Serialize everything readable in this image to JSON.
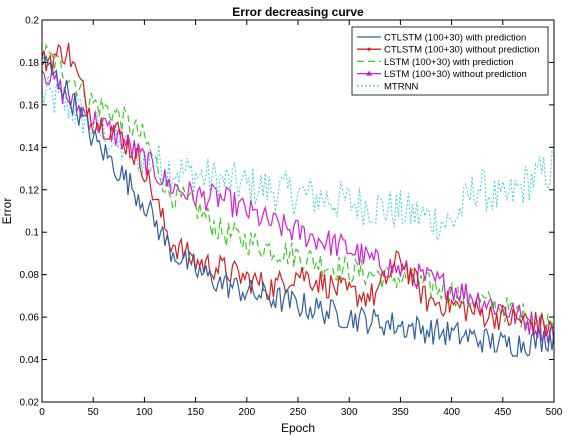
{
  "chart_data": {
    "type": "line",
    "title": "Error decreasing curve",
    "xlabel": "Epoch",
    "ylabel": "Error",
    "xlim": [
      0,
      500
    ],
    "ylim": [
      0.02,
      0.2
    ],
    "xticks": [
      "0",
      "50",
      "100",
      "150",
      "200",
      "250",
      "300",
      "350",
      "400",
      "450",
      "500"
    ],
    "yticks": [
      "0.02",
      "0.04",
      "0.06",
      "0.08",
      "0.1",
      "0.12",
      "0.14",
      "0.16",
      "0.18",
      "0.2"
    ],
    "grid": false,
    "legend_position": "top-right",
    "series": [
      {
        "name": "CTLSTM (100+30) with prediction",
        "color": "#2f5f9e",
        "style": "solid",
        "marker": "none",
        "x": [
          0,
          25,
          50,
          75,
          100,
          125,
          150,
          175,
          200,
          225,
          250,
          275,
          300,
          325,
          350,
          375,
          400,
          425,
          450,
          475,
          500
        ],
        "y": [
          0.181,
          0.166,
          0.144,
          0.129,
          0.114,
          0.092,
          0.082,
          0.076,
          0.072,
          0.069,
          0.066,
          0.063,
          0.06,
          0.058,
          0.056,
          0.054,
          0.052,
          0.05,
          0.047,
          0.048,
          0.051
        ]
      },
      {
        "name": "CTLSTM (100+30) without prediction",
        "color": "#d22020",
        "style": "solid",
        "marker": "dot",
        "x": [
          0,
          25,
          50,
          75,
          100,
          125,
          150,
          175,
          200,
          225,
          250,
          275,
          300,
          325,
          350,
          375,
          400,
          425,
          450,
          475,
          500
        ],
        "y": [
          0.18,
          0.186,
          0.153,
          0.147,
          0.13,
          0.096,
          0.086,
          0.083,
          0.078,
          0.074,
          0.081,
          0.076,
          0.071,
          0.07,
          0.088,
          0.068,
          0.066,
          0.062,
          0.06,
          0.058,
          0.054
        ]
      },
      {
        "name": "LSTM (100+30) with prediction",
        "color": "#3fca2a",
        "style": "dashed",
        "marker": "none",
        "x": [
          0,
          25,
          50,
          75,
          100,
          125,
          150,
          175,
          200,
          225,
          250,
          275,
          300,
          325,
          350,
          375,
          400,
          425,
          450,
          475,
          500
        ],
        "y": [
          0.185,
          0.175,
          0.161,
          0.155,
          0.144,
          0.118,
          0.112,
          0.1,
          0.096,
          0.092,
          0.089,
          0.085,
          0.082,
          0.08,
          0.078,
          0.075,
          0.072,
          0.068,
          0.064,
          0.06,
          0.056
        ]
      },
      {
        "name": "LSTM (100+30) without prediction",
        "color": "#d21fd2",
        "style": "solid",
        "marker": "triangle",
        "x": [
          0,
          25,
          50,
          75,
          100,
          125,
          150,
          175,
          200,
          225,
          250,
          275,
          300,
          325,
          350,
          375,
          400,
          425,
          450,
          475,
          500
        ],
        "y": [
          0.178,
          0.163,
          0.153,
          0.145,
          0.134,
          0.122,
          0.117,
          0.116,
          0.11,
          0.104,
          0.1,
          0.096,
          0.092,
          0.086,
          0.082,
          0.078,
          0.074,
          0.069,
          0.064,
          0.058,
          0.052
        ]
      },
      {
        "name": "MTRNN",
        "color": "#4fd0df",
        "style": "dotted",
        "marker": "none",
        "x": [
          0,
          25,
          50,
          75,
          100,
          125,
          150,
          175,
          200,
          225,
          250,
          275,
          300,
          325,
          350,
          375,
          400,
          425,
          450,
          475,
          500
        ],
        "y": [
          0.165,
          0.16,
          0.15,
          0.14,
          0.135,
          0.13,
          0.127,
          0.124,
          0.122,
          0.12,
          0.118,
          0.116,
          0.114,
          0.112,
          0.11,
          0.107,
          0.104,
          0.122,
          0.114,
          0.124,
          0.13
        ]
      }
    ]
  }
}
